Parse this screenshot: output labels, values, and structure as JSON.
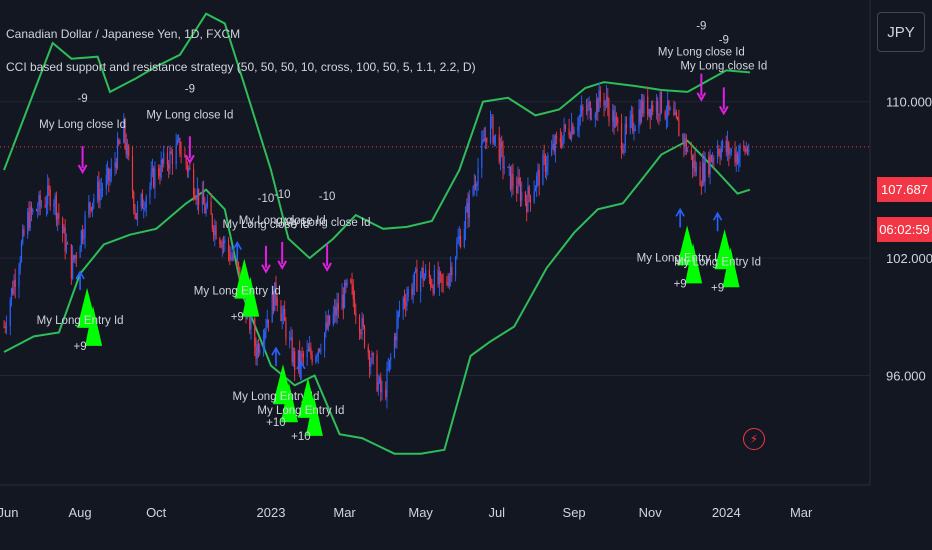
{
  "header": {
    "symbol_line": "Canadian Dollar / Japanese Yen, 1D, FXCM",
    "strategy_line": "CCI based support and resistance strategy (50, 50, 50, 10, cross, 100, 50, 5, 1.1, 2.2, D)"
  },
  "currency_button": "JPY",
  "last_price": "107.687",
  "countdown": "06:02:59",
  "colors": {
    "background": "#131722",
    "bull": "#2962ff",
    "bear": "#f23645",
    "band": "#2ebd59",
    "entry_marker": "#00ff00",
    "exit_marker": "#e020e0",
    "entry_arrow": "#2962ff"
  },
  "chart_data": {
    "type": "candlestick",
    "title": "Canadian Dollar / Japanese Yen, 1D, FXCM",
    "y_axis": {
      "ticks": [
        "110.000",
        "102.000",
        "96.000"
      ],
      "ylim": [
        90.4,
        115.2
      ],
      "position": "right"
    },
    "x_axis": {
      "ticks": [
        "Jun",
        "Aug",
        "Oct",
        "2023",
        "Mar",
        "May",
        "Jul",
        "Sep",
        "Nov",
        "2024",
        "Mar"
      ]
    },
    "price_path": [
      {
        "date": "2022-06-01",
        "close": 98.5
      },
      {
        "date": "2022-06-20",
        "close": 104.0
      },
      {
        "date": "2022-07-10",
        "close": 105.4
      },
      {
        "date": "2022-07-25",
        "close": 101.5
      },
      {
        "date": "2022-08-10",
        "close": 105.0
      },
      {
        "date": "2022-08-25",
        "close": 106.1
      },
      {
        "date": "2022-09-05",
        "close": 108.5
      },
      {
        "date": "2022-09-15",
        "close": 104.2
      },
      {
        "date": "2022-09-30",
        "close": 106.3
      },
      {
        "date": "2022-10-20",
        "close": 107.7
      },
      {
        "date": "2022-11-05",
        "close": 105.0
      },
      {
        "date": "2022-11-20",
        "close": 103.3
      },
      {
        "date": "2022-12-05",
        "close": 101.5
      },
      {
        "date": "2022-12-20",
        "close": 97.3
      },
      {
        "date": "2023-01-05",
        "close": 100.3
      },
      {
        "date": "2023-01-20",
        "close": 96.6
      },
      {
        "date": "2023-02-05",
        "close": 97.2
      },
      {
        "date": "2023-02-20",
        "close": 99.0
      },
      {
        "date": "2023-03-05",
        "close": 100.6
      },
      {
        "date": "2023-03-20",
        "close": 97.3
      },
      {
        "date": "2023-04-01",
        "close": 94.7
      },
      {
        "date": "2023-04-15",
        "close": 99.7
      },
      {
        "date": "2023-05-01",
        "close": 101.2
      },
      {
        "date": "2023-05-20",
        "close": 100.5
      },
      {
        "date": "2023-06-05",
        "close": 103.8
      },
      {
        "date": "2023-06-25",
        "close": 109.0
      },
      {
        "date": "2023-07-10",
        "close": 106.2
      },
      {
        "date": "2023-07-25",
        "close": 105.0
      },
      {
        "date": "2023-08-10",
        "close": 107.0
      },
      {
        "date": "2023-08-25",
        "close": 108.5
      },
      {
        "date": "2023-09-10",
        "close": 109.5
      },
      {
        "date": "2023-09-25",
        "close": 110.2
      },
      {
        "date": "2023-10-10",
        "close": 108.0
      },
      {
        "date": "2023-10-25",
        "close": 109.7
      },
      {
        "date": "2023-11-10",
        "close": 109.9
      },
      {
        "date": "2023-11-25",
        "close": 108.5
      },
      {
        "date": "2023-12-10",
        "close": 106.1
      },
      {
        "date": "2023-12-25",
        "close": 107.7
      },
      {
        "date": "2024-01-10",
        "close": 107.3
      },
      {
        "date": "2024-01-20",
        "close": 107.69
      }
    ],
    "series": [
      {
        "upper_band": [
          {
            "date": "2022-06-01",
            "value": 106.5
          },
          {
            "date": "2022-06-25",
            "value": 110.5
          },
          {
            "date": "2022-07-10",
            "value": 113.0
          },
          {
            "date": "2022-07-25",
            "value": 112.2
          },
          {
            "date": "2022-08-15",
            "value": 112.3
          },
          {
            "date": "2022-08-25",
            "value": 110.5
          },
          {
            "date": "2022-09-15",
            "value": 111.2
          },
          {
            "date": "2022-10-01",
            "value": 111.8
          },
          {
            "date": "2022-10-20",
            "value": 112.4
          },
          {
            "date": "2022-11-10",
            "value": 114.5
          },
          {
            "date": "2022-11-25",
            "value": 114.0
          },
          {
            "date": "2022-12-10",
            "value": 111.0
          },
          {
            "date": "2023-01-01",
            "value": 106.5
          },
          {
            "date": "2023-01-15",
            "value": 103.0
          },
          {
            "date": "2023-02-01",
            "value": 102.0
          },
          {
            "date": "2023-02-20",
            "value": 103.0
          },
          {
            "date": "2023-03-10",
            "value": 104.2
          },
          {
            "date": "2023-04-01",
            "value": 103.5
          },
          {
            "date": "2023-04-20",
            "value": 103.6
          },
          {
            "date": "2023-05-10",
            "value": 103.9
          },
          {
            "date": "2023-06-01",
            "value": 106.5
          },
          {
            "date": "2023-06-20",
            "value": 110.0
          },
          {
            "date": "2023-07-10",
            "value": 110.2
          },
          {
            "date": "2023-08-01",
            "value": 109.3
          },
          {
            "date": "2023-08-20",
            "value": 109.6
          },
          {
            "date": "2023-09-10",
            "value": 110.7
          },
          {
            "date": "2023-09-25",
            "value": 111.0
          },
          {
            "date": "2023-10-20",
            "value": 110.8
          },
          {
            "date": "2023-11-10",
            "value": 110.6
          },
          {
            "date": "2023-12-01",
            "value": 110.5
          },
          {
            "date": "2024-01-01",
            "value": 111.6
          },
          {
            "date": "2024-01-20",
            "value": 111.5
          }
        ],
        "lower_band": [
          {
            "date": "2022-06-01",
            "value": 97.2
          },
          {
            "date": "2022-06-25",
            "value": 98.0
          },
          {
            "date": "2022-07-15",
            "value": 98.2
          },
          {
            "date": "2022-08-01",
            "value": 101.2
          },
          {
            "date": "2022-08-20",
            "value": 102.7
          },
          {
            "date": "2022-09-10",
            "value": 103.2
          },
          {
            "date": "2022-10-01",
            "value": 103.5
          },
          {
            "date": "2022-10-25",
            "value": 104.8
          },
          {
            "date": "2022-11-10",
            "value": 105.5
          },
          {
            "date": "2022-11-25",
            "value": 104.5
          },
          {
            "date": "2022-12-10",
            "value": 100.0
          },
          {
            "date": "2023-01-01",
            "value": 96.5
          },
          {
            "date": "2023-01-20",
            "value": 95.5
          },
          {
            "date": "2023-02-05",
            "value": 96.0
          },
          {
            "date": "2023-02-25",
            "value": 93.0
          },
          {
            "date": "2023-03-15",
            "value": 92.8
          },
          {
            "date": "2023-04-10",
            "value": 92.0
          },
          {
            "date": "2023-05-01",
            "value": 92.0
          },
          {
            "date": "2023-05-20",
            "value": 92.2
          },
          {
            "date": "2023-06-10",
            "value": 97.0
          },
          {
            "date": "2023-06-25",
            "value": 97.7
          },
          {
            "date": "2023-07-15",
            "value": 98.5
          },
          {
            "date": "2023-08-10",
            "value": 101.5
          },
          {
            "date": "2023-09-01",
            "value": 103.3
          },
          {
            "date": "2023-09-20",
            "value": 104.5
          },
          {
            "date": "2023-10-10",
            "value": 104.8
          },
          {
            "date": "2023-10-25",
            "value": 106.0
          },
          {
            "date": "2023-11-10",
            "value": 107.3
          },
          {
            "date": "2023-12-01",
            "value": 108.0
          },
          {
            "date": "2023-12-25",
            "value": 106.4
          },
          {
            "date": "2024-01-10",
            "value": 105.3
          },
          {
            "date": "2024-01-20",
            "value": 105.5
          }
        ]
      }
    ],
    "markers": [
      {
        "type": "exit",
        "label": "My Long close Id",
        "qty": "-9",
        "date": "2022-08-03",
        "price": 106.3
      },
      {
        "type": "exit",
        "label": "My Long close Id",
        "qty": "-9",
        "date": "2022-10-28",
        "price": 106.8
      },
      {
        "type": "exit",
        "label": "My Long close Id",
        "qty": "-10",
        "date": "2022-12-28",
        "price": 101.2
      },
      {
        "type": "exit",
        "label": "My Long close Id",
        "qty": "-10",
        "date": "2023-01-10",
        "price": 101.4
      },
      {
        "type": "exit",
        "label": "My Long close Id",
        "qty": "-10",
        "date": "2023-02-15",
        "price": 101.3
      },
      {
        "type": "exit",
        "label": "My Long close Id",
        "qty": "-9",
        "date": "2023-12-12",
        "price": 110.0
      },
      {
        "type": "exit",
        "label": "My Long close Id",
        "qty": "-9",
        "date": "2023-12-30",
        "price": 109.3
      },
      {
        "type": "entry",
        "label": "My Long Entry Id",
        "qty": "+9",
        "date": "2022-08-01",
        "price": 101.5
      },
      {
        "type": "entry",
        "label": "My Long Entry Id",
        "qty": "+9",
        "date": "2022-12-05",
        "price": 103.0
      },
      {
        "type": "entry",
        "label": "My Long Entry Id",
        "qty": "+10",
        "date": "2023-01-05",
        "price": 97.6
      },
      {
        "type": "entry",
        "label": "My Long Entry Id",
        "qty": "+10",
        "date": "2023-01-25",
        "price": 96.9
      },
      {
        "type": "entry",
        "label": "My Long Entry Id",
        "qty": "+9",
        "date": "2023-11-25",
        "price": 104.7
      },
      {
        "type": "entry",
        "label": "My Long Entry Id",
        "qty": "+9",
        "date": "2023-12-25",
        "price": 104.5
      }
    ],
    "last_price": 107.687,
    "grid": true,
    "legend": "top-left"
  }
}
